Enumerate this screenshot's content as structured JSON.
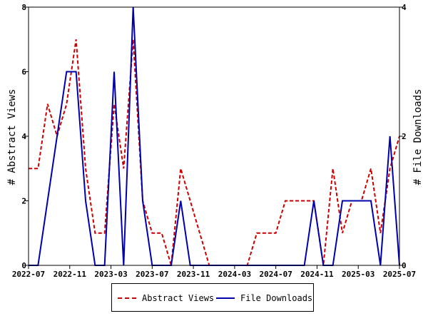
{
  "chart_data": {
    "type": "line",
    "ylabel_left": "# Abstract Views",
    "ylabel_right": "# File Downloads",
    "xlabel": "",
    "x_tick_labels": [
      "2022-07",
      "2022-11",
      "2023-03",
      "2023-07",
      "2023-11",
      "2024-03",
      "2024-07",
      "2024-11",
      "2025-03",
      "2025-07"
    ],
    "y_left": {
      "ylim": [
        0,
        8
      ],
      "ticks": [
        "0",
        "2",
        "4",
        "6",
        "8"
      ]
    },
    "y_right": {
      "ylim": [
        0,
        4
      ],
      "ticks": [
        "0",
        "2",
        "4"
      ]
    },
    "legend_position": "bottom",
    "series": [
      {
        "name": "Abstract Views",
        "axis": "left",
        "color": "#cc0000",
        "style": "dashed",
        "values": [
          3,
          3,
          5,
          4,
          5,
          7,
          3,
          1,
          1,
          5,
          3,
          7,
          2,
          1,
          1,
          0,
          3,
          2,
          1,
          0,
          0,
          0,
          0,
          0,
          1,
          1,
          1,
          2,
          2,
          2,
          2,
          0,
          3,
          1,
          2,
          2,
          3,
          1,
          3,
          4
        ]
      },
      {
        "name": "File Downloads",
        "axis": "right",
        "color": "#0000aa",
        "style": "solid",
        "values": [
          0,
          0,
          1,
          2,
          3,
          3,
          1,
          0,
          0,
          3,
          0,
          4,
          1,
          0,
          0,
          0,
          1,
          0,
          0,
          0,
          0,
          0,
          0,
          0,
          0,
          0,
          0,
          0,
          0,
          0,
          1,
          0,
          0,
          1,
          1,
          1,
          1,
          0,
          2,
          0
        ]
      }
    ]
  }
}
